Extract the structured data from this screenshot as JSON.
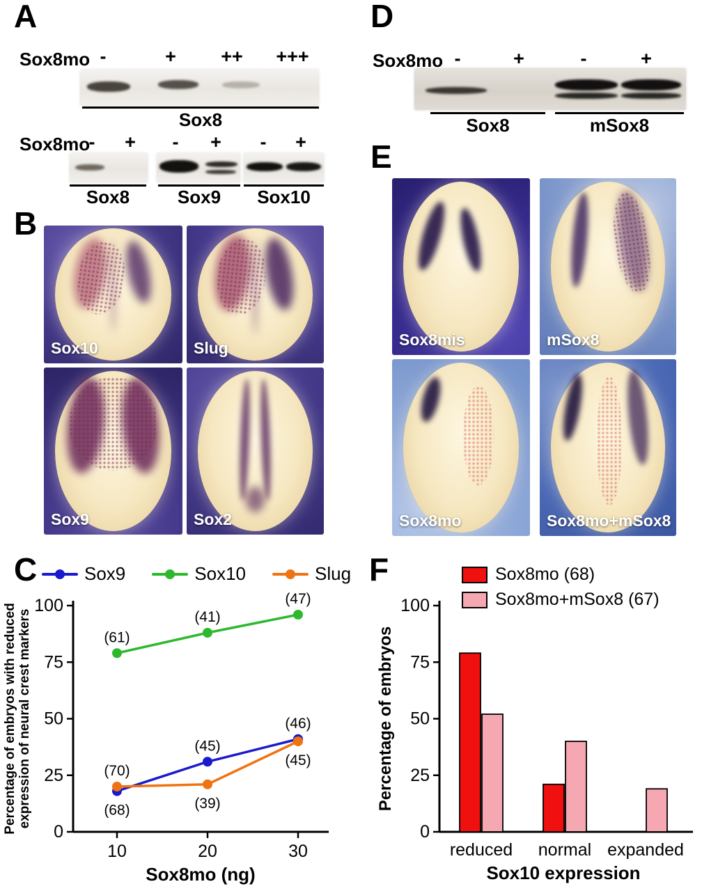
{
  "figure": {
    "background": "#ffffff"
  },
  "panels": {
    "A": {
      "letter": "A",
      "blot1": {
        "row_label": "Sox8mo",
        "doses": [
          "-",
          "+",
          "++",
          "+++"
        ],
        "gel_label": "Sox8"
      },
      "blot2": {
        "row_label": "Sox8mo",
        "doses": [
          "-",
          "+",
          "-",
          "+",
          "-",
          "+"
        ],
        "gel_labels": [
          "Sox8",
          "Sox9",
          "Sox10"
        ]
      }
    },
    "B": {
      "letter": "B",
      "images": [
        {
          "label": "Sox10"
        },
        {
          "label": "Slug"
        },
        {
          "label": "Sox9"
        },
        {
          "label": "Sox2"
        }
      ]
    },
    "C": {
      "letter": "C"
    },
    "D": {
      "letter": "D",
      "row_label": "Sox8mo",
      "doses": [
        "-",
        "+",
        "-",
        "+"
      ],
      "gel_labels": [
        "Sox8",
        "mSox8"
      ]
    },
    "E": {
      "letter": "E",
      "images": [
        {
          "label": "Sox8mis"
        },
        {
          "label": "mSox8"
        },
        {
          "label": "Sox8mo"
        },
        {
          "label": "Sox8mo+mSox8"
        }
      ]
    },
    "F": {
      "letter": "F"
    }
  },
  "chart_data": [
    {
      "id": "panel-C",
      "type": "line",
      "x": [
        10,
        20,
        30
      ],
      "xlabel": "Sox8mo (ng)",
      "ylabel": "Percentage of embryos with reduced expression of neural crest markers",
      "ylabel_lines": [
        "Percentage of embryos with reduced",
        "expression of neural crest markers"
      ],
      "ylim": [
        0,
        100
      ],
      "yticks": [
        0,
        25,
        50,
        75,
        100
      ],
      "grid": false,
      "legend_position": "top",
      "series": [
        {
          "name": "Sox9",
          "color": "#1a1acc",
          "values": [
            18,
            31,
            41
          ],
          "point_labels": [
            {
              "text": "(68)",
              "pos": "below"
            },
            {
              "text": "(45)",
              "pos": "above"
            },
            {
              "text": "(46)",
              "pos": "above"
            }
          ]
        },
        {
          "name": "Sox10",
          "color": "#2eb82e",
          "values": [
            79,
            88,
            96
          ],
          "point_labels": [
            {
              "text": "(61)",
              "pos": "above"
            },
            {
              "text": "(41)",
              "pos": "above"
            },
            {
              "text": "(47)",
              "pos": "above"
            }
          ]
        },
        {
          "name": "Slug",
          "color": "#f07312",
          "values": [
            20,
            21,
            40
          ],
          "point_labels": [
            {
              "text": "(70)",
              "pos": "above"
            },
            {
              "text": "(39)",
              "pos": "below"
            },
            {
              "text": "(45)",
              "pos": "below"
            }
          ]
        }
      ]
    },
    {
      "id": "panel-F",
      "type": "bar",
      "categories": [
        "reduced",
        "normal",
        "expanded"
      ],
      "xlabel": "Sox10 expression",
      "ylabel": "Percentage of embryos",
      "ylim": [
        0,
        100
      ],
      "yticks": [
        0,
        25,
        50,
        75,
        100
      ],
      "grid": false,
      "legend_position": "top",
      "series": [
        {
          "name": "Sox8mo (68)",
          "color": "#f01010",
          "values": [
            79,
            21,
            0
          ]
        },
        {
          "name": "Sox8mo+mSox8 (67)",
          "color": "#f6a8b2",
          "values": [
            52,
            40,
            19
          ]
        }
      ]
    }
  ]
}
